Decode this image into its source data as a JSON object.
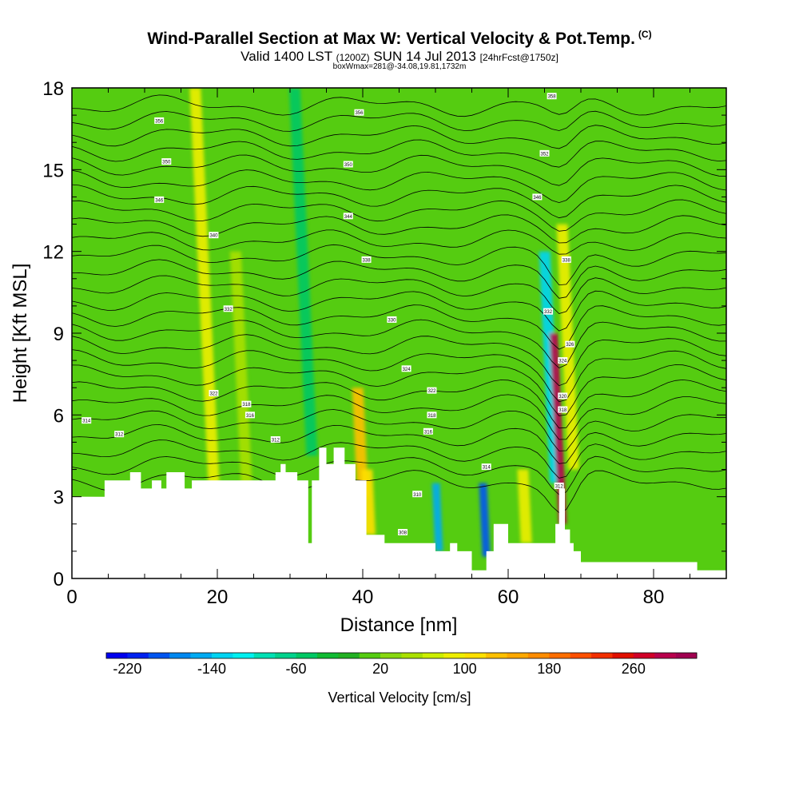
{
  "header": {
    "title": "Wind-Parallel Section at Max W: Vertical Velocity & Pot.Temp.",
    "title_mark": "(C)",
    "valid_prefix": "Valid 1400 LST",
    "valid_utc": "(1200Z)",
    "valid_date": "SUN 14 Jul 2013",
    "forecast": "[24hrFcst@1750z]",
    "box_info": "boxWmax=281@-34.08,19.81,1732m"
  },
  "colorbar": {
    "label": "Vertical Velocity [cm/s]",
    "min": -240,
    "max": 320,
    "step": 20,
    "tick_labels": [
      "-220",
      "-140",
      "-60",
      "20",
      "100",
      "180",
      "260"
    ],
    "tick_values": [
      -220,
      -140,
      -60,
      20,
      100,
      180,
      260
    ]
  },
  "colors": {
    "terrain": "#ffffff",
    "background_field": "#55cc11",
    "isentrope": "#000000"
  },
  "chart_data": {
    "type": "heatmap",
    "title": "Wind-Parallel Section at Max W: Vertical Velocity & Pot.Temp.",
    "xlabel": "Distance [nm]",
    "ylabel": "Height [Kft MSL]",
    "xlim": [
      0,
      90
    ],
    "ylim": [
      0,
      18
    ],
    "x_ticks": [
      0,
      20,
      40,
      60,
      80
    ],
    "x_tick_labels": [
      "0",
      "20",
      "40",
      "60",
      "80"
    ],
    "y_ticks": [
      0,
      3,
      6,
      9,
      12,
      15,
      18
    ],
    "y_tick_labels": [
      "0",
      "3",
      "6",
      "9",
      "12",
      "15",
      "18"
    ],
    "terrain_profile": {
      "x": [
        0,
        4.5,
        8,
        9.5,
        11,
        12.3,
        13,
        15.5,
        16.5,
        18.5,
        25,
        28,
        28.7,
        29.4,
        31,
        32.5,
        33,
        34,
        35,
        36,
        37.5,
        39,
        40.5,
        43,
        46,
        49,
        50,
        52,
        53,
        55,
        57,
        58,
        60,
        63,
        66.5,
        67,
        67.8,
        68.5,
        69,
        70,
        75,
        80,
        85,
        86,
        90
      ],
      "height_kft": [
        3.0,
        3.6,
        3.9,
        3.3,
        3.6,
        3.3,
        3.9,
        3.3,
        3.6,
        3.6,
        3.6,
        3.9,
        4.2,
        3.9,
        3.6,
        1.3,
        3.6,
        4.8,
        4.2,
        4.8,
        4.2,
        3.6,
        1.6,
        1.3,
        1.3,
        1.3,
        1.0,
        1.3,
        1.0,
        0.3,
        1.0,
        2.0,
        1.3,
        1.3,
        2.0,
        3.3,
        1.8,
        1.3,
        1.0,
        0.6,
        0.6,
        0.6,
        0.6,
        0.3,
        0.3
      ]
    },
    "velocity_features": [
      {
        "x": 19.5,
        "y_from": 3.5,
        "y_to": 18.0,
        "w_cms": 90
      },
      {
        "x": 24.0,
        "y_from": 3.5,
        "y_to": 12.0,
        "w_cms": 40
      },
      {
        "x": 33.0,
        "y_from": 4.5,
        "y_to": 18.0,
        "w_cms": -50
      },
      {
        "x": 40.0,
        "y_from": 3.0,
        "y_to": 7.0,
        "w_cms": 120
      },
      {
        "x": 41.0,
        "y_from": 1.6,
        "y_to": 4.0,
        "w_cms": 110
      },
      {
        "x": 50.5,
        "y_from": 1.0,
        "y_to": 3.5,
        "w_cms": -160
      },
      {
        "x": 57.0,
        "y_from": 0.8,
        "y_to": 3.5,
        "w_cms": -200
      },
      {
        "x": 62.5,
        "y_from": 1.3,
        "y_to": 4.0,
        "w_cms": 80
      },
      {
        "x": 66.5,
        "y_from": 3.5,
        "y_to": 12.0,
        "w_cms": -140
      },
      {
        "x": 67.5,
        "y_from": 2.0,
        "y_to": 9.0,
        "w_cms": 281
      },
      {
        "x": 69.0,
        "y_from": 4.0,
        "y_to": 13.0,
        "w_cms": 90
      }
    ],
    "isentrope_labels": [
      {
        "x": 12,
        "y": 16.8,
        "theta": "356"
      },
      {
        "x": 13,
        "y": 15.3,
        "theta": "350"
      },
      {
        "x": 12,
        "y": 13.9,
        "theta": "346"
      },
      {
        "x": 19.5,
        "y": 12.6,
        "theta": "340"
      },
      {
        "x": 21.5,
        "y": 9.9,
        "theta": "332"
      },
      {
        "x": 19.5,
        "y": 6.8,
        "theta": "322"
      },
      {
        "x": 24,
        "y": 6.4,
        "theta": "318"
      },
      {
        "x": 24.5,
        "y": 6.0,
        "theta": "316"
      },
      {
        "x": 28,
        "y": 5.1,
        "theta": "312"
      },
      {
        "x": 2,
        "y": 5.8,
        "theta": "314"
      },
      {
        "x": 6.5,
        "y": 5.3,
        "theta": "312"
      },
      {
        "x": 39.5,
        "y": 17.1,
        "theta": "356"
      },
      {
        "x": 38,
        "y": 15.2,
        "theta": "350"
      },
      {
        "x": 38,
        "y": 13.3,
        "theta": "344"
      },
      {
        "x": 40.5,
        "y": 11.7,
        "theta": "338"
      },
      {
        "x": 44,
        "y": 9.5,
        "theta": "330"
      },
      {
        "x": 46,
        "y": 7.7,
        "theta": "324"
      },
      {
        "x": 49.5,
        "y": 6.9,
        "theta": "322"
      },
      {
        "x": 49.5,
        "y": 6.0,
        "theta": "318"
      },
      {
        "x": 49,
        "y": 5.4,
        "theta": "316"
      },
      {
        "x": 47.5,
        "y": 3.1,
        "theta": "310"
      },
      {
        "x": 45.5,
        "y": 1.7,
        "theta": "308"
      },
      {
        "x": 57,
        "y": 4.1,
        "theta": "314"
      },
      {
        "x": 66,
        "y": 17.7,
        "theta": "358"
      },
      {
        "x": 65,
        "y": 15.6,
        "theta": "352"
      },
      {
        "x": 64,
        "y": 14.0,
        "theta": "346"
      },
      {
        "x": 68,
        "y": 11.7,
        "theta": "338"
      },
      {
        "x": 65.5,
        "y": 9.8,
        "theta": "332"
      },
      {
        "x": 68.5,
        "y": 8.6,
        "theta": "326"
      },
      {
        "x": 67.5,
        "y": 8.0,
        "theta": "324"
      },
      {
        "x": 67.5,
        "y": 6.7,
        "theta": "320"
      },
      {
        "x": 67.5,
        "y": 6.2,
        "theta": "318"
      },
      {
        "x": 67,
        "y": 3.4,
        "theta": "312"
      }
    ]
  }
}
